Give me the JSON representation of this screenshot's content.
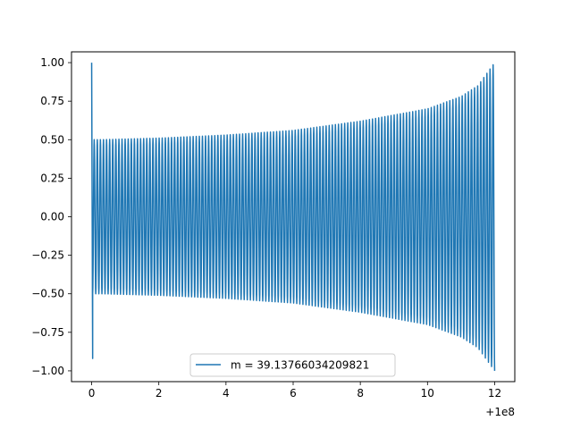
{
  "chart_data": {
    "type": "line",
    "title": "",
    "xlabel": "",
    "ylabel": "",
    "x_offset_label": "+1e8",
    "xlim": [
      -0.6,
      12.6
    ],
    "ylim": [
      -1.07,
      1.07
    ],
    "x_ticks": [
      0,
      2,
      4,
      6,
      8,
      10,
      12
    ],
    "x_tick_labels": [
      "0",
      "2",
      "4",
      "6",
      "8",
      "10",
      "12"
    ],
    "y_ticks": [
      1.0,
      0.75,
      0.5,
      0.25,
      0.0,
      -0.25,
      -0.5,
      -0.75,
      -1.0
    ],
    "y_tick_labels": [
      "1.00",
      "0.75",
      "0.50",
      "0.25",
      "0.00",
      "−0.25",
      "−0.50",
      "−0.75",
      "−1.00"
    ],
    "grid": false,
    "legend_position": "bottom-center",
    "series": [
      {
        "name": "m = 39.13766034209821",
        "color": "#1f77b4",
        "x_start": 0,
        "x_end": 12,
        "cycles": 130,
        "envelope": [
          {
            "x": 0.3,
            "amp": 0.5
          },
          {
            "x": 2,
            "amp": 0.51
          },
          {
            "x": 4,
            "amp": 0.53
          },
          {
            "x": 6,
            "amp": 0.56
          },
          {
            "x": 8,
            "amp": 0.62
          },
          {
            "x": 10,
            "amp": 0.7
          },
          {
            "x": 11,
            "amp": 0.78
          },
          {
            "x": 11.5,
            "amp": 0.85
          },
          {
            "x": 12,
            "amp": 1.0
          }
        ],
        "initial_transient": [
          {
            "x": 0.0,
            "y": 1.0
          },
          {
            "x": 0.03,
            "y": -0.92
          }
        ]
      }
    ]
  }
}
